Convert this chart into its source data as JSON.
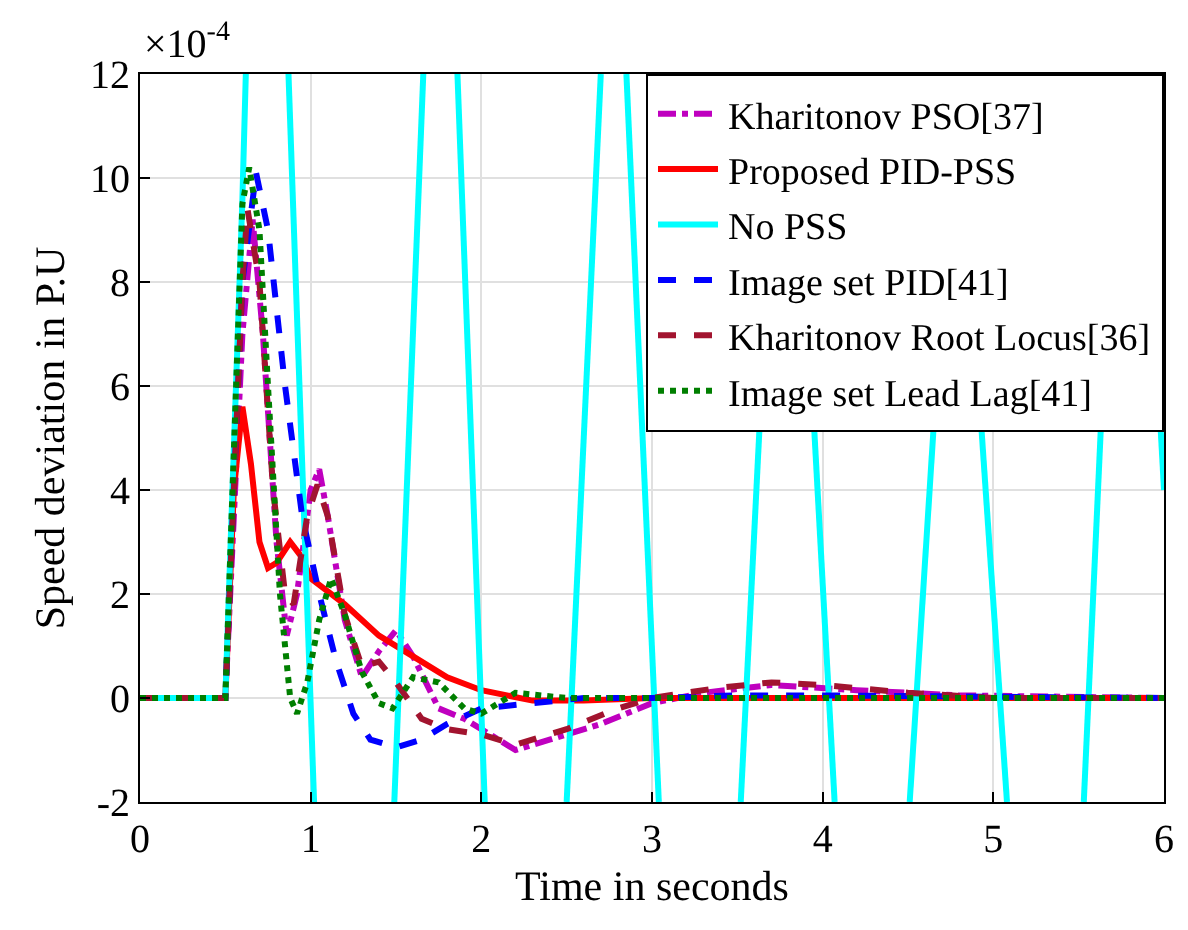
{
  "chart_data": {
    "type": "line",
    "xlabel": "Time in seconds",
    "ylabel": "Speed deviation in P.U",
    "annotations": [
      "×10$^{-4}$"
    ],
    "xlim": [
      0,
      6
    ],
    "xticks": [
      0,
      1,
      2,
      3,
      4,
      5,
      6
    ],
    "ylim": [
      -2,
      12
    ],
    "yticks": [
      -2,
      0,
      2,
      4,
      6,
      8,
      10,
      12
    ],
    "grid": true,
    "legend": "top right",
    "marker": "none",
    "series": [
      {
        "name": "Kharitonov PSO[37]",
        "color": "#bf00bf",
        "line_style": "dashdot",
        "x": [
          0,
          0.5,
          0.6,
          0.66,
          0.72,
          0.8,
          0.86,
          0.92,
          1.0,
          1.05,
          1.1,
          1.2,
          1.3,
          1.4,
          1.5,
          1.6,
          1.75,
          1.9,
          2.05,
          2.2,
          2.4,
          2.7,
          3.0,
          3.3,
          3.7,
          4.2,
          4.8,
          6
        ],
        "values": [
          0,
          0,
          7,
          9.2,
          7,
          3,
          1.2,
          2,
          4,
          4.4,
          3.5,
          1.5,
          0.4,
          0.9,
          1.3,
          0.8,
          -0.2,
          -0.4,
          -0.7,
          -1.0,
          -0.8,
          -0.5,
          -0.1,
          0.1,
          0.25,
          0.15,
          0.05,
          0
        ]
      },
      {
        "name": "Proposed PID-PSS",
        "color": "#ff0000",
        "line_style": "solid",
        "x": [
          0,
          0.5,
          0.55,
          0.6,
          0.65,
          0.7,
          0.75,
          0.8,
          0.88,
          0.95,
          1.0,
          1.2,
          1.4,
          1.6,
          1.8,
          2.0,
          2.3,
          2.6,
          3,
          6
        ],
        "values": [
          0,
          0,
          4,
          5.6,
          4.5,
          3,
          2.5,
          2.6,
          3.0,
          2.7,
          2.3,
          1.8,
          1.2,
          0.8,
          0.4,
          0.15,
          -0.05,
          -0.05,
          0,
          0
        ]
      },
      {
        "name": "No PSS",
        "color": "#00ffff",
        "line_style": "solid",
        "x": [
          0,
          0.5,
          0.6,
          0.62,
          0.7,
          0.87,
          1.02,
          1.2,
          1.49,
          1.66,
          1.75,
          1.86,
          2.02,
          2.2,
          2.5,
          2.7,
          2.78,
          2.85,
          3.04,
          3.3,
          3.52,
          3.63,
          3.78,
          3.95,
          4.07,
          4.3,
          4.51,
          4.65,
          4.8,
          4.93,
          5.08,
          5.3,
          5.53,
          5.63,
          5.8,
          5.98,
          6
        ],
        "values": [
          0,
          0,
          9.6,
          12,
          null,
          12,
          -2,
          null,
          -2,
          12,
          null,
          12,
          -2,
          null,
          -2,
          12,
          null,
          12,
          -2,
          null,
          -2,
          5.2,
          null,
          5.2,
          -2,
          null,
          -2,
          5.2,
          null,
          5.2,
          -2,
          null,
          -2,
          5.2,
          null,
          5.2,
          4
        ]
      },
      {
        "name": "Image set PID[41]",
        "color": "#0000ff",
        "line_style": "dashed",
        "x": [
          0,
          0.5,
          0.6,
          0.68,
          0.75,
          0.85,
          0.95,
          1.05,
          1.15,
          1.25,
          1.35,
          1.5,
          1.65,
          1.8,
          2.0,
          2.3,
          2.6,
          3.0,
          3.5,
          4,
          6
        ],
        "values": [
          0,
          0,
          8,
          10.1,
          9,
          6,
          3.5,
          2,
          0.7,
          -0.3,
          -0.8,
          -0.95,
          -0.8,
          -0.5,
          -0.2,
          -0.1,
          0,
          0,
          0.05,
          0.05,
          0
        ]
      },
      {
        "name": "Kharitonov Root Locus[36]",
        "color": "#a2142f",
        "line_style": "dashed",
        "x": [
          0,
          0.5,
          0.6,
          0.63,
          0.7,
          0.78,
          0.85,
          0.9,
          0.98,
          1.04,
          1.1,
          1.2,
          1.3,
          1.4,
          1.5,
          1.65,
          1.8,
          2.0,
          2.2,
          2.5,
          2.8,
          3.0,
          3.4,
          3.7,
          4.0,
          4.5,
          5,
          6
        ],
        "values": [
          0,
          0,
          8,
          9.4,
          8,
          4,
          2,
          1.8,
          3.5,
          4.1,
          3.5,
          1.6,
          0.6,
          0.7,
          0.3,
          -0.4,
          -0.6,
          -0.7,
          -0.9,
          -0.6,
          -0.2,
          0,
          0.2,
          0.3,
          0.25,
          0.1,
          0,
          0
        ]
      },
      {
        "name": "Image set Lead Lag[41]",
        "color": "#007f00",
        "line_style": "dotted",
        "x": [
          0,
          0.5,
          0.6,
          0.64,
          0.7,
          0.75,
          0.82,
          0.88,
          0.92,
          0.98,
          1.05,
          1.12,
          1.2,
          1.3,
          1.4,
          1.48,
          1.6,
          1.75,
          1.9,
          2.0,
          2.2,
          2.5,
          3,
          6
        ],
        "values": [
          0,
          0,
          9.5,
          10.2,
          9,
          6,
          2,
          0,
          -0.3,
          0.3,
          1.5,
          2.3,
          1.6,
          0.5,
          -0.1,
          -0.2,
          0.4,
          0.3,
          -0.2,
          -0.3,
          0.1,
          0,
          0,
          0
        ]
      }
    ]
  }
}
